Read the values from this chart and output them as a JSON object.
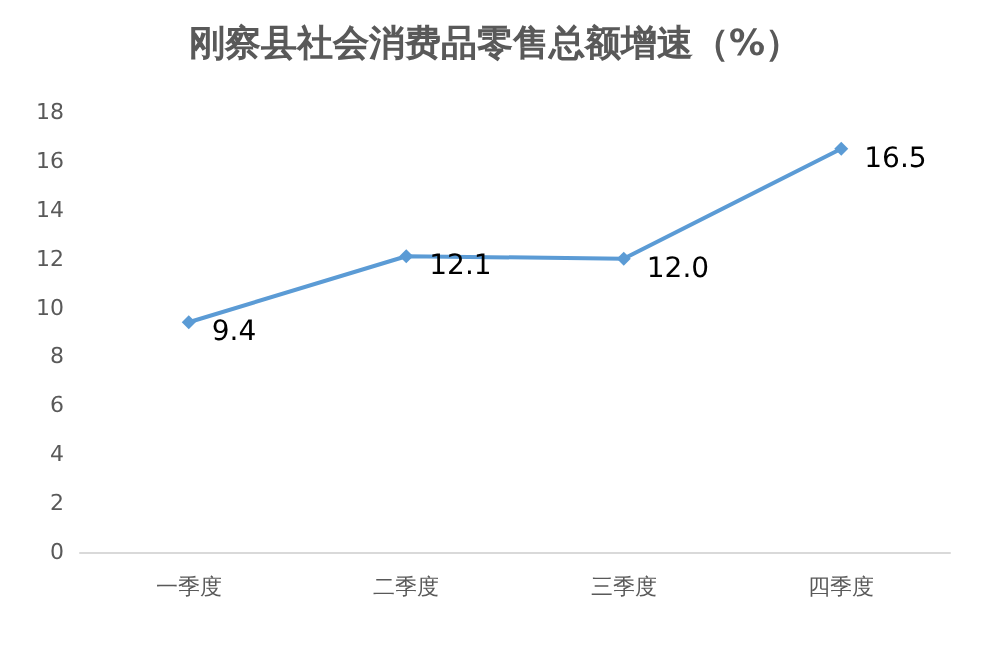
{
  "chart_data": {
    "type": "line",
    "title": "刚察县社会消费品零售总额增速（%）",
    "categories": [
      "一季度",
      "二季度",
      "三季度",
      "四季度"
    ],
    "series": [
      {
        "color": "#5b9bd5",
        "values": [
          9.4,
          12.1,
          12.0,
          16.5
        ],
        "value_labels": [
          "9.4",
          "12.1",
          "12.0",
          "16.5"
        ]
      }
    ],
    "ylim": [
      0,
      18
    ],
    "yticks": [
      0,
      2,
      4,
      6,
      8,
      10,
      12,
      14,
      16,
      18
    ],
    "marker": "diamond",
    "line_style": "solid"
  }
}
